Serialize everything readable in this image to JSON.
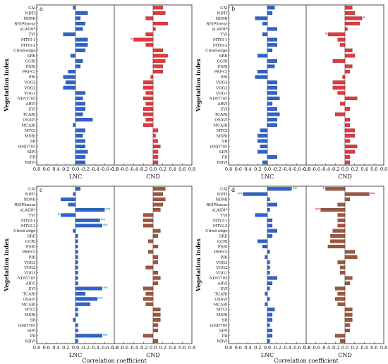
{
  "colors": {
    "lnc": "#2e63c9",
    "lnc_edge": "#1f3f86",
    "cnd": "#e0393e",
    "cnd_edge": "#8e1f22",
    "brown": "#a0553e",
    "brown_edge": "#5c2e20",
    "sig_lnc": "#17a398",
    "sig_cnd": "#d0309a"
  },
  "common": {
    "y_axis_title": "Vegetation index",
    "x_axis_title": "Correlation coefficient",
    "left_label": "LNC",
    "right_label": "CND",
    "left_ticks": [
      "0.8",
      "0.6",
      "0.4",
      "0.2",
      "0.0",
      "-0.2",
      "-0.4",
      "-0.6",
      "-0.8"
    ],
    "right_ticks": [
      "-0.8",
      "-0.6",
      "-0.4",
      "-0.2",
      "0.0",
      "0.2",
      "0.4",
      "0.6",
      "0.8"
    ],
    "indices": [
      "CAI",
      "NDTI",
      "NDMI",
      "REIPlinear",
      "sLAIDI*",
      "TVI",
      "MTVI-1",
      "MTVI-2",
      "CIred-edge",
      "SRE",
      "CCRI",
      "PSRI",
      "PRI*CI",
      "PRI",
      "VOG3",
      "VOG2",
      "VOG1",
      "NDVI705",
      "ARVI",
      "EVI",
      "TCARI",
      "OSAVI",
      "MCARI",
      "MTCI",
      "MSRI",
      "SR",
      "mND705",
      "SIPI",
      "PD",
      "NDVI"
    ]
  },
  "chart_data": [
    {
      "panel": "a",
      "type": "bar",
      "xlim": [
        -0.8,
        0.8
      ],
      "lnc": [
        0.05,
        -0.25,
        -0.1,
        -0.2,
        -0.15,
        0.25,
        -0.25,
        -0.25,
        -0.2,
        0.1,
        -0.15,
        -0.1,
        0.15,
        0.25,
        0.2,
        0.25,
        -0.2,
        -0.15,
        -0.2,
        -0.2,
        -0.15,
        -0.35,
        0.05,
        -0.2,
        -0.15,
        -0.2,
        -0.2,
        -0.25,
        -0.2,
        -0.2
      ],
      "cnd": [
        0.2,
        0.25,
        -0.15,
        0.3,
        0.05,
        -0.15,
        -0.4,
        -0.15,
        0.2,
        0.3,
        0.25,
        0.2,
        0.2,
        -0.05,
        -0.2,
        -0.2,
        -0.15,
        -0.2,
        -0.15,
        -0.2,
        -0.2,
        -0.15,
        -0.2,
        0.1,
        0.05,
        0.1,
        0.15,
        0.1,
        0.1,
        0.1
      ],
      "lnc_sig": [
        "",
        "",
        "",
        "",
        "",
        "",
        "",
        "",
        "",
        "",
        "",
        "",
        "",
        "",
        "",
        "",
        "",
        "",
        "",
        "",
        "",
        "",
        "",
        "",
        "",
        "",
        "",
        "",
        "",
        ""
      ],
      "cnd_sig": [
        "",
        "",
        "",
        "",
        "",
        "",
        "*",
        "",
        "",
        "",
        "",
        "",
        "",
        "",
        "",
        "",
        "",
        "",
        "",
        "",
        "",
        "",
        "",
        "",
        "",
        "",
        "",
        "",
        "",
        ""
      ],
      "cnd_brown": false
    },
    {
      "panel": "b",
      "type": "bar",
      "xlim": [
        -0.8,
        0.8
      ],
      "lnc": [
        -0.15,
        -0.1,
        0.25,
        0.1,
        -0.2,
        0.1,
        -0.2,
        -0.2,
        -0.1,
        0.2,
        -0.2,
        -0.15,
        0.2,
        0.25,
        -0.2,
        -0.2,
        -0.2,
        -0.25,
        -0.1,
        -0.2,
        -0.25,
        -0.2,
        -0.2,
        0.15,
        0.2,
        0.2,
        0.15,
        0.2,
        -0.2,
        0.1
      ],
      "cnd": [
        0.15,
        0.2,
        0.35,
        0.3,
        0.05,
        -0.35,
        -0.15,
        -0.1,
        0.15,
        0.2,
        -0.25,
        0.15,
        0.1,
        -0.05,
        -0.25,
        -0.25,
        -0.15,
        0.25,
        -0.1,
        0.1,
        -0.2,
        0.1,
        0.1,
        0.2,
        0.2,
        0.1,
        0.25,
        0.2,
        0.1,
        0.1
      ],
      "lnc_sig": [
        "",
        "",
        "",
        "",
        "",
        "",
        "",
        "",
        "",
        "",
        "",
        "",
        "",
        "",
        "",
        "",
        "",
        "",
        "",
        "",
        "",
        "",
        "",
        "",
        "",
        "",
        "",
        "",
        "",
        ""
      ],
      "cnd_sig": [
        "",
        "",
        "*",
        "",
        "",
        "*",
        "",
        "",
        "",
        "",
        "",
        "",
        "",
        "",
        "",
        "",
        "",
        "",
        "",
        "",
        "",
        "",
        "",
        "",
        "",
        "",
        "",
        "",
        "",
        ""
      ],
      "cnd_brown": false
    },
    {
      "panel": "c",
      "type": "bar",
      "xlim": [
        -0.8,
        0.8
      ],
      "lnc": [
        -0.1,
        0.05,
        0.3,
        0.15,
        -0.6,
        0.3,
        -0.5,
        -0.55,
        0.05,
        -0.05,
        -0.05,
        -0.05,
        -0.05,
        -0.05,
        -0.05,
        -0.05,
        -0.05,
        -0.05,
        -0.05,
        -0.55,
        -0.2,
        -0.45,
        -0.3,
        -0.05,
        -0.05,
        0.05,
        -0.05,
        -0.05,
        -0.55,
        -0.05
      ],
      "cnd": [
        0.25,
        0.2,
        0.25,
        0.2,
        0.15,
        -0.2,
        -0.2,
        -0.2,
        0.15,
        0.1,
        -0.1,
        0.1,
        -0.1,
        0.1,
        0.1,
        -0.15,
        0.1,
        0.15,
        0.1,
        -0.2,
        -0.15,
        -0.2,
        -0.15,
        0.15,
        0.15,
        0.15,
        0.1,
        0.1,
        -0.2,
        0.1
      ],
      "lnc_sig": [
        "",
        "",
        "",
        "",
        "**",
        "*",
        "**",
        "**",
        "",
        "",
        "",
        "",
        "",
        "",
        "",
        "",
        "",
        "",
        "",
        "**",
        "",
        "**",
        "",
        "",
        "",
        "",
        "",
        "",
        "**",
        ""
      ],
      "cnd_sig": [
        "",
        "",
        "",
        "",
        "",
        "",
        "",
        "",
        "",
        "",
        "",
        "",
        "",
        "",
        "",
        "",
        "",
        "",
        "",
        "",
        "",
        "",
        "",
        "",
        "",
        "",
        "",
        "",
        "",
        ""
      ],
      "cnd_brown": true
    },
    {
      "panel": "d",
      "type": "bar",
      "xlim": [
        -0.8,
        0.8
      ],
      "lnc": [
        -0.5,
        0.5,
        -0.05,
        -0.2,
        -0.05,
        0.25,
        -0.1,
        -0.1,
        -0.2,
        -0.1,
        0.2,
        0.1,
        -0.05,
        0.05,
        -0.05,
        -0.05,
        -0.05,
        -0.2,
        -0.1,
        -0.05,
        0.05,
        -0.05,
        0.05,
        -0.15,
        -0.1,
        -0.1,
        -0.05,
        -0.1,
        -0.1,
        -0.05
      ],
      "cnd": [
        -0.4,
        0.5,
        0.1,
        -0.15,
        -0.5,
        -0.15,
        -0.15,
        -0.15,
        -0.25,
        -0.3,
        -0.3,
        -0.35,
        0.2,
        0.25,
        -0.15,
        -0.1,
        -0.1,
        0.15,
        0.1,
        -0.2,
        -0.15,
        -0.2,
        -0.15,
        0.15,
        0.15,
        0.15,
        0.1,
        0.1,
        -0.2,
        -0.1
      ],
      "lnc_sig": [
        "**",
        "**",
        "",
        "",
        "",
        "",
        "",
        "",
        "",
        "",
        "",
        "",
        "",
        "",
        "",
        "",
        "",
        "",
        "",
        "",
        "",
        "",
        "",
        "",
        "",
        "",
        "",
        "",
        "",
        ""
      ],
      "cnd_sig": [
        "*",
        "**",
        "",
        "",
        "**",
        "",
        "",
        "",
        "",
        "",
        "",
        "",
        "",
        "",
        "",
        "",
        "",
        "",
        "",
        "",
        "",
        "",
        "",
        "",
        "",
        "",
        "",
        "",
        "",
        ""
      ],
      "cnd_brown": true
    }
  ]
}
